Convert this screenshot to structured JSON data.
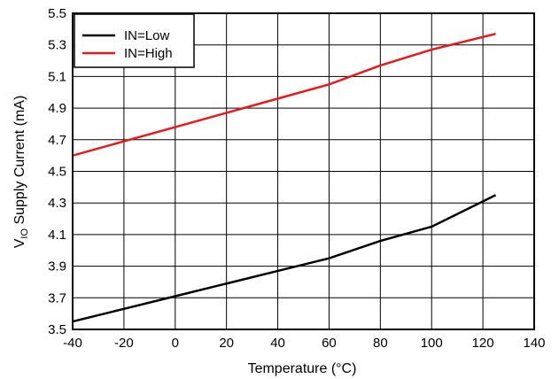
{
  "chart_data": {
    "type": "line",
    "title": "",
    "xlabel": "Temperature (°C)",
    "ylabel_main": "V",
    "ylabel_sub": "IO",
    "ylabel_rest": " Supply Current (mA)",
    "xlim": [
      -40,
      140
    ],
    "ylim": [
      3.5,
      5.5
    ],
    "xticks": [
      -40,
      -20,
      0,
      20,
      40,
      60,
      80,
      100,
      120,
      140
    ],
    "yticks": [
      3.5,
      3.7,
      3.9,
      4.1,
      4.3,
      4.5,
      4.7,
      4.9,
      5.1,
      5.3,
      5.5
    ],
    "grid": true,
    "legend_position": "top-left",
    "series": [
      {
        "name": "IN=Low",
        "color": "#000000",
        "x": [
          -40,
          -20,
          0,
          20,
          40,
          60,
          80,
          100,
          125
        ],
        "y": [
          3.55,
          3.63,
          3.71,
          3.79,
          3.87,
          3.95,
          4.06,
          4.15,
          4.35
        ]
      },
      {
        "name": "IN=High",
        "color": "#e8191c",
        "x": [
          -40,
          -20,
          0,
          20,
          40,
          60,
          80,
          100,
          125
        ],
        "y": [
          4.6,
          4.69,
          4.78,
          4.87,
          4.96,
          5.05,
          5.17,
          5.27,
          5.37
        ]
      }
    ]
  }
}
